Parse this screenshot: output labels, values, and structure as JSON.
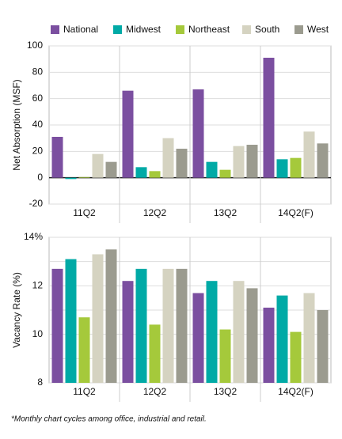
{
  "chart_data": [
    {
      "type": "bar",
      "y_label": "Net Absorption (MSF)",
      "categories": [
        "11Q2",
        "12Q2",
        "13Q2",
        "14Q2(F)"
      ],
      "series": [
        {
          "name": "National",
          "color": "#7b4fa0",
          "values": [
            31,
            66,
            67,
            91
          ]
        },
        {
          "name": "Midwest",
          "color": "#00aaa6",
          "values": [
            -1,
            8,
            12,
            14
          ]
        },
        {
          "name": "Northeast",
          "color": "#a5c93b",
          "values": [
            0.5,
            5,
            6,
            15
          ]
        },
        {
          "name": "South",
          "color": "#d5d3c1",
          "values": [
            18,
            30,
            24,
            35
          ]
        },
        {
          "name": "West",
          "color": "#9b9b8f",
          "values": [
            12,
            22,
            25,
            26
          ]
        }
      ],
      "ylim": [
        -20,
        100
      ],
      "yticks": [
        -20,
        0,
        20,
        40,
        60,
        80,
        100
      ],
      "grid": true
    },
    {
      "type": "bar",
      "y_label": "Vacancy Rate (%)",
      "categories": [
        "11Q2",
        "12Q2",
        "13Q2",
        "14Q2(F)"
      ],
      "series": [
        {
          "color": "#7b4fa0",
          "values": [
            12.7,
            12.2,
            11.7,
            11.1
          ]
        },
        {
          "color": "#00aaa6",
          "values": [
            13.1,
            12.7,
            12.2,
            11.6
          ]
        },
        {
          "color": "#a5c93b",
          "values": [
            10.7,
            10.4,
            10.2,
            10.1
          ]
        },
        {
          "color": "#d5d3c1",
          "values": [
            13.3,
            12.7,
            12.2,
            11.7
          ]
        },
        {
          "color": "#9b9b8f",
          "values": [
            13.5,
            12.7,
            11.9,
            11.0
          ]
        }
      ],
      "ylim": [
        8,
        14
      ],
      "yticks": [
        8,
        10,
        12,
        {
          "value": 14,
          "label": "14%"
        }
      ],
      "minor_gridlines": [
        9,
        11,
        13
      ],
      "grid": true
    }
  ],
  "footnote": "*Monthly chart cycles among office, industrial and retail."
}
